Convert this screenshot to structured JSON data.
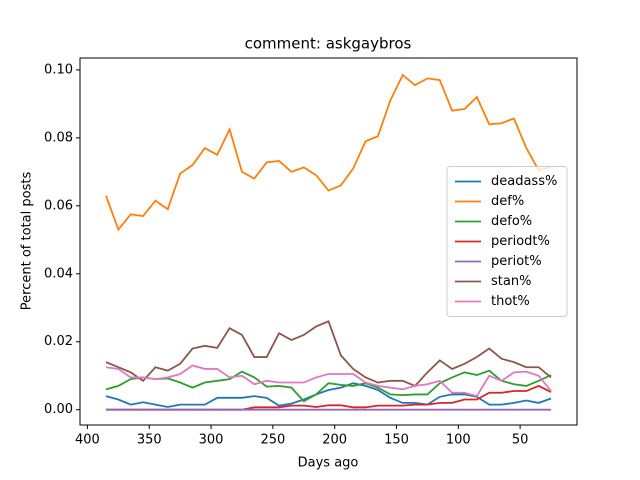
{
  "chart_data": {
    "type": "line",
    "title": "comment: askgaybros",
    "xlabel": "Days ago",
    "ylabel": "Percent of total posts",
    "x": [
      385,
      375,
      365,
      355,
      345,
      335,
      325,
      315,
      305,
      295,
      285,
      275,
      265,
      255,
      245,
      235,
      225,
      215,
      205,
      195,
      185,
      175,
      165,
      155,
      145,
      135,
      125,
      115,
      105,
      95,
      85,
      75,
      65,
      55,
      45,
      35,
      25
    ],
    "series": [
      {
        "name": "deadass%",
        "color": "#1f77b4",
        "values": [
          0.004,
          0.003,
          0.0015,
          0.0022,
          0.0015,
          0.0008,
          0.0015,
          0.0015,
          0.0015,
          0.0035,
          0.0035,
          0.0035,
          0.004,
          0.0035,
          0.0012,
          0.0018,
          0.003,
          0.0045,
          0.0058,
          0.0065,
          0.0078,
          0.007,
          0.0058,
          0.0035,
          0.002,
          0.002,
          0.0015,
          0.0038,
          0.0045,
          0.0045,
          0.0038,
          0.0015,
          0.0015,
          0.002,
          0.0027,
          0.002,
          0.0033
        ]
      },
      {
        "name": "def%",
        "color": "#ff7f0e",
        "values": [
          0.063,
          0.053,
          0.0575,
          0.057,
          0.0615,
          0.059,
          0.0695,
          0.072,
          0.077,
          0.075,
          0.0825,
          0.07,
          0.068,
          0.0728,
          0.0732,
          0.07,
          0.0713,
          0.069,
          0.0645,
          0.066,
          0.071,
          0.079,
          0.0805,
          0.091,
          0.0985,
          0.0955,
          0.0975,
          0.097,
          0.088,
          0.0885,
          0.092,
          0.084,
          0.0843,
          0.0857,
          0.077,
          0.0705,
          0.0715
        ]
      },
      {
        "name": "defo%",
        "color": "#2ca02c",
        "values": [
          0.006,
          0.007,
          0.009,
          0.0095,
          0.009,
          0.0092,
          0.008,
          0.0065,
          0.008,
          0.0085,
          0.009,
          0.0112,
          0.0095,
          0.0068,
          0.007,
          0.0065,
          0.0025,
          0.0045,
          0.0078,
          0.0073,
          0.007,
          0.0078,
          0.0065,
          0.0045,
          0.0043,
          0.0045,
          0.0045,
          0.0078,
          0.0095,
          0.011,
          0.0102,
          0.0115,
          0.0085,
          0.0075,
          0.007,
          0.0085,
          0.0102
        ]
      },
      {
        "name": "periodt%",
        "color": "#d62728",
        "values": [
          0,
          0,
          0,
          0,
          0,
          0,
          0,
          0,
          0,
          0,
          0,
          0,
          0.0007,
          0.0007,
          0.0007,
          0.0012,
          0.0012,
          0.0008,
          0.0013,
          0.0013,
          0.0007,
          0.0007,
          0.0012,
          0.0012,
          0.0012,
          0.0015,
          0.0015,
          0.002,
          0.002,
          0.003,
          0.003,
          0.005,
          0.005,
          0.0055,
          0.0055,
          0.007,
          0.0052
        ]
      },
      {
        "name": "periot%",
        "color": "#9467bd",
        "values": [
          0,
          0,
          0,
          0,
          0,
          0,
          0,
          0,
          0,
          0,
          0,
          0,
          0,
          0,
          0,
          0,
          0,
          0,
          0,
          0,
          0,
          0,
          0,
          0,
          0,
          0,
          0,
          0,
          0,
          0,
          0,
          0,
          0,
          0,
          0,
          0,
          0
        ]
      },
      {
        "name": "stan%",
        "color": "#8c564b",
        "values": [
          0.014,
          0.0125,
          0.011,
          0.0085,
          0.0125,
          0.0115,
          0.0135,
          0.018,
          0.0188,
          0.0182,
          0.024,
          0.022,
          0.0155,
          0.0155,
          0.0225,
          0.0205,
          0.022,
          0.0245,
          0.026,
          0.016,
          0.012,
          0.0095,
          0.008,
          0.0085,
          0.0085,
          0.007,
          0.011,
          0.0145,
          0.012,
          0.0135,
          0.0155,
          0.018,
          0.015,
          0.014,
          0.0125,
          0.0125,
          0.0095
        ]
      },
      {
        "name": "thot%",
        "color": "#e377c2",
        "values": [
          0.0125,
          0.012,
          0.0095,
          0.0095,
          0.009,
          0.0095,
          0.0105,
          0.013,
          0.012,
          0.012,
          0.0095,
          0.01,
          0.0075,
          0.0085,
          0.008,
          0.008,
          0.008,
          0.0095,
          0.0105,
          0.0105,
          0.0105,
          0.008,
          0.007,
          0.0065,
          0.006,
          0.007,
          0.0075,
          0.0085,
          0.005,
          0.005,
          0.004,
          0.01,
          0.0085,
          0.011,
          0.0112,
          0.01,
          0.0055
        ]
      }
    ],
    "xlim": [
      406,
      4
    ],
    "xticks": [
      400,
      350,
      300,
      250,
      200,
      150,
      100,
      50
    ],
    "ylim": [
      -0.0045,
      0.1035
    ],
    "yticks": [
      {
        "value": 0,
        "label": "0.00"
      },
      {
        "value": 0.02,
        "label": "0.02"
      },
      {
        "value": 0.04,
        "label": "0.04"
      },
      {
        "value": 0.06,
        "label": "0.06"
      },
      {
        "value": 0.08,
        "label": "0.08"
      },
      {
        "value": 0.1,
        "label": "0.10"
      }
    ],
    "legend": "center right"
  }
}
